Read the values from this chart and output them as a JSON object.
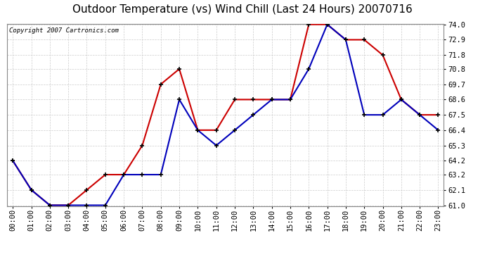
{
  "title": "Outdoor Temperature (vs) Wind Chill (Last 24 Hours) 20070716",
  "copyright": "Copyright 2007 Cartronics.com",
  "hours": [
    "00:00",
    "01:00",
    "02:00",
    "03:00",
    "04:00",
    "05:00",
    "06:00",
    "07:00",
    "08:00",
    "09:00",
    "10:00",
    "11:00",
    "12:00",
    "13:00",
    "14:00",
    "15:00",
    "16:00",
    "17:00",
    "18:00",
    "19:00",
    "20:00",
    "21:00",
    "22:00",
    "23:00"
  ],
  "red_temp": [
    64.2,
    62.1,
    61.0,
    61.0,
    62.1,
    63.2,
    63.2,
    65.3,
    69.7,
    70.8,
    66.4,
    66.4,
    68.6,
    68.6,
    68.6,
    68.6,
    74.0,
    74.0,
    72.9,
    72.9,
    71.8,
    68.6,
    67.5,
    67.5
  ],
  "blue_wc": [
    64.2,
    62.1,
    61.0,
    61.0,
    61.0,
    61.0,
    63.2,
    63.2,
    63.2,
    68.6,
    66.4,
    65.3,
    66.4,
    67.5,
    68.6,
    68.6,
    70.8,
    74.0,
    72.9,
    67.5,
    67.5,
    68.6,
    67.5,
    66.4
  ],
  "red_color": "#cc0000",
  "blue_color": "#0000bb",
  "bg_color": "#ffffff",
  "grid_color": "#cccccc",
  "ylim_min": 61.0,
  "ylim_max": 74.0,
  "yticks": [
    61.0,
    62.1,
    63.2,
    64.2,
    65.3,
    66.4,
    67.5,
    68.6,
    69.7,
    70.8,
    71.8,
    72.9,
    74.0
  ],
  "title_fontsize": 11,
  "copyright_fontsize": 6.5,
  "tick_fontsize": 7.5,
  "marker_size": 4,
  "line_width": 1.5
}
